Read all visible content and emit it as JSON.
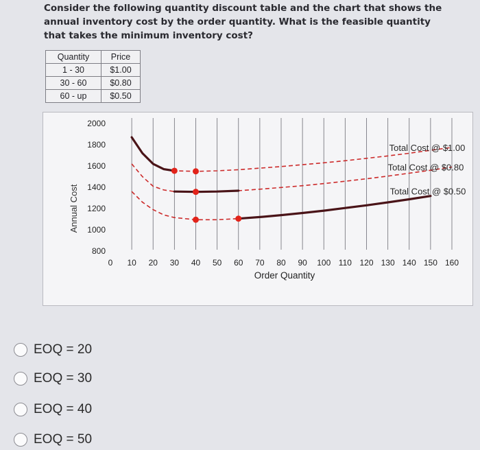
{
  "question": {
    "text": "Consider the following quantity discount table and the chart that shows the annual inventory cost by the order quantity. What is the feasible quantity that takes the minimum inventory cost?"
  },
  "price_table": {
    "headers": [
      "Quantity",
      "Price"
    ],
    "rows": [
      [
        "1 - 30",
        "$1.00"
      ],
      [
        "30 - 60",
        "$0.80"
      ],
      [
        "60 - up",
        "$0.50"
      ]
    ]
  },
  "chart_data": {
    "type": "line",
    "xlabel": "Order Quantity",
    "ylabel": "Annual Cost",
    "xlim": [
      0,
      160
    ],
    "ylim": [
      800,
      2000
    ],
    "x_ticks": [
      0,
      10,
      20,
      30,
      40,
      50,
      60,
      70,
      80,
      90,
      100,
      110,
      120,
      130,
      140,
      150,
      160
    ],
    "y_ticks": [
      800,
      1000,
      1200,
      1400,
      1600,
      1800,
      2000
    ],
    "grid": "vertical",
    "series": [
      {
        "name": "Total Cost @ $1.00",
        "color": "#cc2a2a",
        "solid_range": [
          10,
          30
        ],
        "x": [
          10,
          15,
          20,
          25,
          30,
          40,
          50,
          60,
          70,
          80,
          90,
          100,
          110,
          120,
          130,
          140,
          150,
          160
        ],
        "y": [
          1870,
          1720,
          1620,
          1570,
          1555,
          1550,
          1555,
          1565,
          1580,
          1595,
          1612,
          1630,
          1650,
          1672,
          1695,
          1720,
          1748,
          1775
        ]
      },
      {
        "name": "Total Cost @ $0.80",
        "color": "#cc2a2a",
        "solid_range": [
          30,
          60
        ],
        "x": [
          10,
          15,
          20,
          25,
          30,
          40,
          50,
          60,
          70,
          80,
          90,
          100,
          110,
          120,
          130,
          140,
          150,
          160
        ],
        "y": [
          1620,
          1500,
          1410,
          1375,
          1360,
          1357,
          1360,
          1368,
          1382,
          1398,
          1415,
          1435,
          1457,
          1480,
          1505,
          1532,
          1560,
          1590
        ]
      },
      {
        "name": "Total Cost @ $0.50",
        "color": "#cc2a2a",
        "solid_range": [
          60,
          160
        ],
        "x": [
          10,
          15,
          20,
          25,
          30,
          40,
          50,
          60,
          70,
          80,
          90,
          100,
          110,
          120,
          130,
          140,
          150
        ],
        "y": [
          1360,
          1260,
          1190,
          1140,
          1115,
          1095,
          1095,
          1105,
          1120,
          1138,
          1158,
          1180,
          1205,
          1230,
          1258,
          1287,
          1318
        ]
      }
    ],
    "markers": [
      {
        "x": 30,
        "y": 1555
      },
      {
        "x": 40,
        "y": 1550
      },
      {
        "x": 40,
        "y": 1357
      },
      {
        "x": 40,
        "y": 1095
      },
      {
        "x": 60,
        "y": 1105
      }
    ]
  },
  "options": [
    {
      "label": "EOQ = 20"
    },
    {
      "label": "EOQ = 30"
    },
    {
      "label": "EOQ = 40"
    },
    {
      "label": "EOQ = 50"
    }
  ]
}
